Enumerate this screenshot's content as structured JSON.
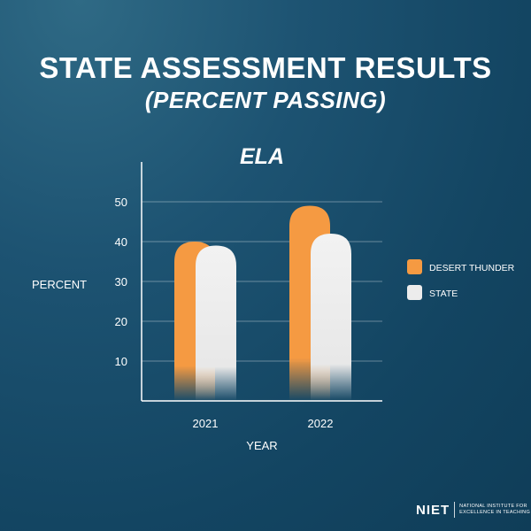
{
  "title": "STATE ASSESSMENT RESULTS",
  "subtitle": "(PERCENT PASSING)",
  "chart_data": {
    "type": "bar",
    "title": "ELA",
    "categories": [
      "2021",
      "2022"
    ],
    "series": [
      {
        "name": "DESERT THUNDER",
        "values": [
          40,
          49
        ],
        "color": "#f59a42"
      },
      {
        "name": "STATE",
        "values": [
          39,
          42
        ],
        "color": "#ececec"
      }
    ],
    "xlabel": "YEAR",
    "ylabel": "PERCENT",
    "yticks": [
      10,
      20,
      30,
      40,
      50
    ],
    "ylim": [
      0,
      60
    ],
    "grid": true,
    "legend_position": "right"
  },
  "logo": {
    "mark": "NIET",
    "full_name": "NATIONAL INSTITUTE FOR EXCELLENCE IN TEACHING"
  }
}
